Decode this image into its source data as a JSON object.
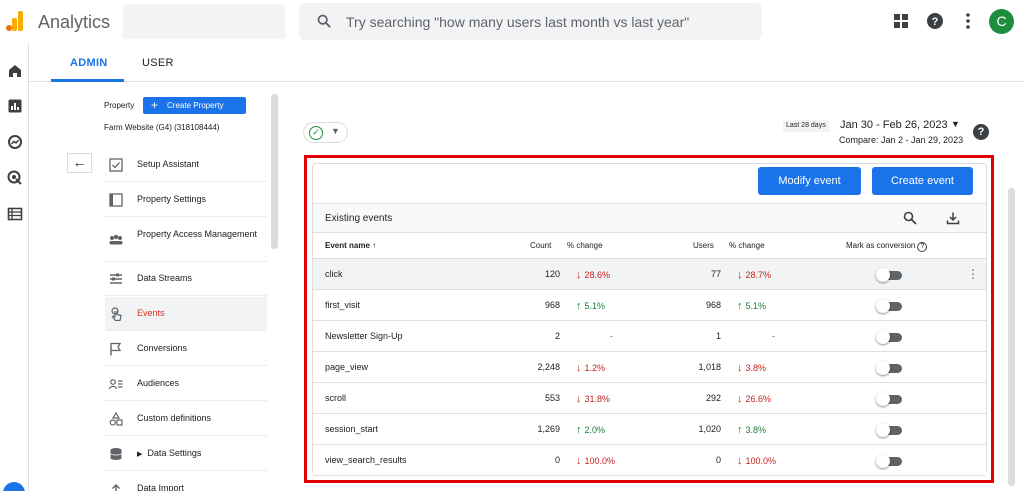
{
  "app": {
    "title": "Analytics",
    "search_placeholder": "Try searching \"how many users last month vs last year\"",
    "avatar_letter": "C",
    "brand_color": "#f9ab00"
  },
  "tabs": [
    {
      "label": "ADMIN",
      "active": true
    },
    {
      "label": "USER",
      "active": false
    }
  ],
  "property": {
    "label": "Property",
    "create_button": "Create Property",
    "name": "Farm Website (G4) (318108444)"
  },
  "menu": [
    {
      "label": "Setup Assistant",
      "icon": "checkbox-icon"
    },
    {
      "label": "Property Settings",
      "icon": "page-icon"
    },
    {
      "label": "Property Access Management",
      "icon": "people-icon"
    },
    {
      "label": "Data Streams",
      "icon": "streams-icon"
    },
    {
      "label": "Events",
      "icon": "touch-icon",
      "active": true
    },
    {
      "label": "Conversions",
      "icon": "flag-icon"
    },
    {
      "label": "Audiences",
      "icon": "audience-icon"
    },
    {
      "label": "Custom definitions",
      "icon": "shapes-icon"
    },
    {
      "label": "Data Settings",
      "icon": "database-icon"
    },
    {
      "label": "Data Import",
      "icon": "upload-icon"
    }
  ],
  "date": {
    "badge": "Last 28 days",
    "range": "Jan 30 - Feb 26, 2023",
    "compare": "Compare: Jan 2 - Jan 29, 2023"
  },
  "buttons": {
    "modify": "Modify event",
    "create": "Create event"
  },
  "table": {
    "title": "Existing events",
    "headers": {
      "event_name": "Event name",
      "count": "Count",
      "count_change": "% change",
      "users": "Users",
      "users_change": "% change",
      "conversion": "Mark as conversion"
    },
    "rows": [
      {
        "name": "click",
        "count": "120",
        "count_change": "28.6%",
        "count_dir": "down",
        "users": "77",
        "users_change": "28.7%",
        "users_dir": "down"
      },
      {
        "name": "first_visit",
        "count": "968",
        "count_change": "5.1%",
        "count_dir": "up",
        "users": "968",
        "users_change": "5.1%",
        "users_dir": "up"
      },
      {
        "name": "Newsletter Sign-Up",
        "count": "2",
        "count_change": "-",
        "count_dir": "none",
        "users": "1",
        "users_change": "-",
        "users_dir": "none"
      },
      {
        "name": "page_view",
        "count": "2,248",
        "count_change": "1.2%",
        "count_dir": "down",
        "users": "1,018",
        "users_change": "3.8%",
        "users_dir": "down"
      },
      {
        "name": "scroll",
        "count": "553",
        "count_change": "31.8%",
        "count_dir": "down",
        "users": "292",
        "users_change": "26.6%",
        "users_dir": "down"
      },
      {
        "name": "session_start",
        "count": "1,269",
        "count_change": "2.0%",
        "count_dir": "up",
        "users": "1,020",
        "users_change": "3.8%",
        "users_dir": "up"
      },
      {
        "name": "view_search_results",
        "count": "0",
        "count_change": "100.0%",
        "count_dir": "down",
        "users": "0",
        "users_change": "100.0%",
        "users_dir": "down"
      }
    ]
  }
}
